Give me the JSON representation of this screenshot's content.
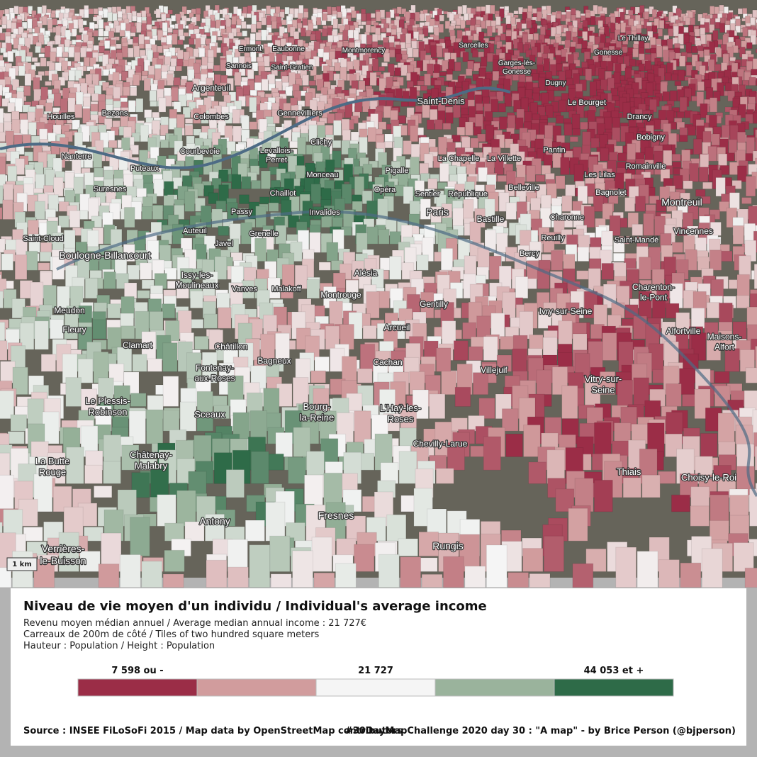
{
  "map": {
    "labels": [
      "Montmorency",
      "Sarcelles",
      [
        "Garges-lès-",
        "Gonesse"
      ],
      "Dugny",
      "Gonesse",
      "Le Thillay",
      "Ermont",
      "Eaubonne",
      "Sannois",
      "Saint-Gratien",
      "Argenteuil",
      "Saint-Denis",
      "Le Bourget",
      "Drancy",
      "Bobigny",
      "Houilles",
      "Bezons",
      "Colombes",
      "Gennevilliers",
      "Nanterre",
      "Courbevoie",
      "Clichy",
      "Puteaux",
      [
        "Levallois-",
        "Perret"
      ],
      "Monceau",
      "Pigalle",
      "La Chapelle",
      "La Villette",
      "Pantin",
      "Romainville",
      "Suresnes",
      "Chaillot",
      "Opéra",
      "Sentier",
      "République",
      "Belleville",
      "Les Lilas",
      "Bagnolet",
      "Montreuil",
      "Passy",
      "Invalides",
      "Paris",
      "Bastille",
      "Charonne",
      "Saint-Cloud",
      "Auteuil",
      "Grenelle",
      "Javel",
      "Reuilly",
      "Saint-Mandé",
      "Vincennes",
      "Boulogne-Billancourt",
      "Bercy",
      [
        "Issy-les-",
        "Moulineaux"
      ],
      "Vanves",
      "Malakoff",
      "Alésia",
      "Montrouge",
      "Gentilly",
      "Ivry-sur-Seine",
      [
        "Charenton-",
        "le-Pont"
      ],
      "Meudon",
      "Fleury",
      "Arcueil",
      "Alfortville",
      [
        "Maisons-",
        "Alfort"
      ],
      "Clamart",
      "Châtillon",
      [
        "Fontenay-",
        "aux-Roses"
      ],
      "Bagneux",
      "Cachan",
      "Villejuif",
      [
        "Vitry-sur-",
        "Seine"
      ],
      [
        "Le Plessis-",
        "Robinson"
      ],
      "Sceaux",
      [
        "Bourg-",
        "la-Reine"
      ],
      [
        "L'Haÿ-les-",
        "Roses"
      ],
      "Chevilly-Larue",
      [
        "Châtenay-",
        "Malabry"
      ],
      [
        "La Butte",
        "Rouge"
      ],
      "Thiais",
      "Choisy-le-Roi",
      "Antony",
      "Fresnes",
      "Rungis",
      [
        "Verrières-",
        "le-Buisson"
      ]
    ],
    "scale": "1 km"
  },
  "legend": {
    "title": "Niveau de vie moyen d'un individu / Individual's average income",
    "lines": [
      "Revenu moyen médian annuel / Average median annual income : 21 727€",
      "Carreaux de 200m de côté / Tiles of two hundred square meters",
      "Hauteur : Population / Height : Population"
    ],
    "breaks": [
      "7 598 ou -",
      "21 727",
      "44 053 et +"
    ],
    "colors": [
      "#9b2d47",
      "#d19c9d",
      "#f5f5f5",
      "#9ab39c",
      "#2e6b48"
    ]
  },
  "footer": {
    "source": "Source : INSEE FiLoSoFi 2015 / Map data by OpenStreetMap contributors",
    "credit": "#30DayMapChallenge 2020 day 30 : \"A map\" - by Brice Person (@bjperson)"
  }
}
